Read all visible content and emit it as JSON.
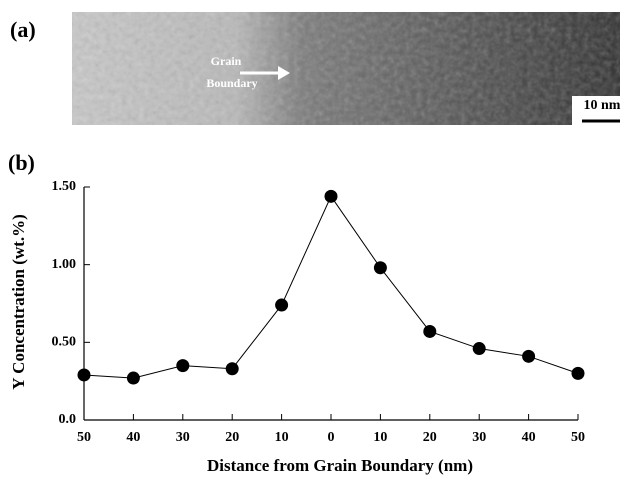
{
  "panel_a": {
    "label": "(a)",
    "annotation": [
      "Grain",
      "Boundary"
    ],
    "scale_bar": "10 nm"
  },
  "chart_data": {
    "type": "line",
    "panel_label": "(b)",
    "x_label": "Distance from Grain Boundary (nm)",
    "y_label": "Y Concentration (wt.%)",
    "categories": [
      "50",
      "40",
      "30",
      "20",
      "10",
      "0",
      "10",
      "20",
      "30",
      "40",
      "50"
    ],
    "values": [
      0.29,
      0.27,
      0.35,
      0.33,
      0.74,
      1.44,
      0.98,
      0.57,
      0.46,
      0.41,
      0.3
    ],
    "color": "#000000",
    "ylim": [
      0,
      1.5
    ],
    "yticks": [
      {
        "value": 0,
        "label": "0.0"
      },
      {
        "value": 0.5,
        "label": "0.50"
      },
      {
        "value": 1,
        "label": "1.00"
      },
      {
        "value": 1.5,
        "label": "1.50"
      }
    ]
  }
}
